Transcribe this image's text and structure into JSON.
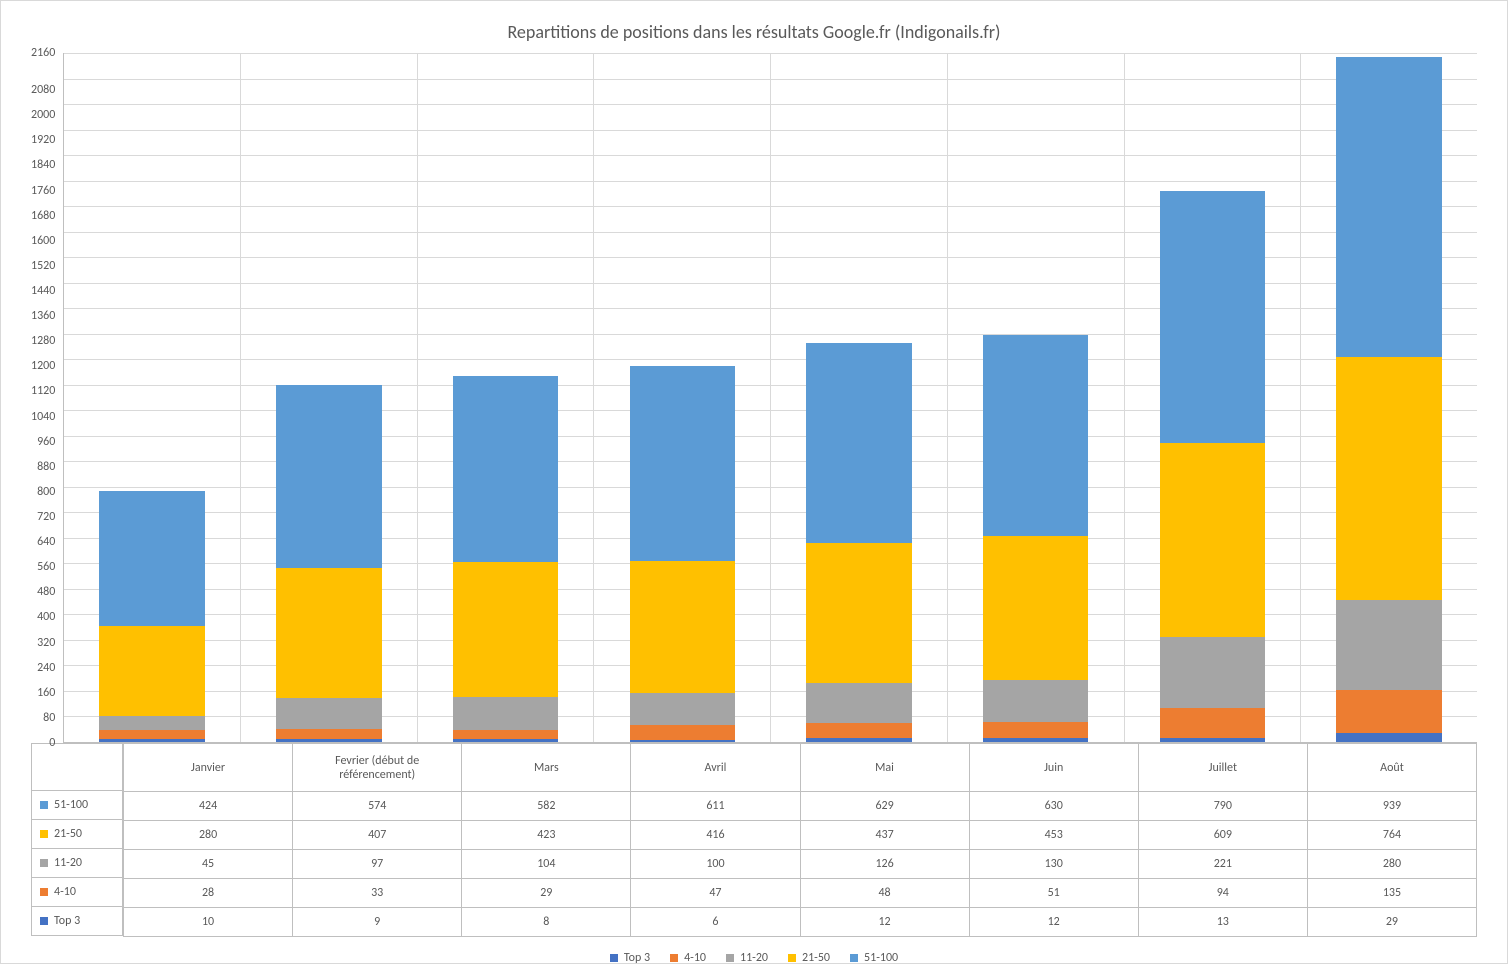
{
  "chart": {
    "type": "stacked-bar",
    "title": "Repartitions de positions dans les résultats Google.fr (Indigonails.fr)",
    "title_fontsize": 18,
    "title_color": "#595959",
    "background_color": "#ffffff",
    "grid_color": "#d9d9d9",
    "axis_color": "#bfbfbf",
    "label_fontsize": 12,
    "label_color": "#595959",
    "ylim": [
      0,
      2160
    ],
    "ytick_step": 80,
    "yticks": [
      2160,
      2080,
      2000,
      1920,
      1840,
      1760,
      1680,
      1600,
      1520,
      1440,
      1360,
      1280,
      1200,
      1120,
      1040,
      960,
      880,
      800,
      720,
      640,
      560,
      480,
      400,
      320,
      240,
      160,
      80,
      0
    ],
    "categories": [
      "Janvier",
      "Fevrier (début de référencement)",
      "Mars",
      "Avril",
      "Mai",
      "Juin",
      "Juillet",
      "Août"
    ],
    "series": [
      {
        "name": "Top 3",
        "color": "#4472c4",
        "values": [
          10,
          9,
          8,
          6,
          12,
          12,
          13,
          29
        ]
      },
      {
        "name": "4-10",
        "color": "#ed7d31",
        "values": [
          28,
          33,
          29,
          47,
          48,
          51,
          94,
          135
        ]
      },
      {
        "name": "11-20",
        "color": "#a5a5a5",
        "values": [
          45,
          97,
          104,
          100,
          126,
          130,
          221,
          280
        ]
      },
      {
        "name": "21-50",
        "color": "#ffc000",
        "values": [
          280,
          407,
          423,
          416,
          437,
          453,
          609,
          764
        ]
      },
      {
        "name": "51-100",
        "color": "#5b9bd5",
        "values": [
          424,
          574,
          582,
          611,
          629,
          630,
          790,
          939
        ]
      }
    ],
    "table_row_order": [
      "51-100",
      "21-50",
      "11-20",
      "4-10",
      "Top 3"
    ],
    "bar_width": 0.6
  }
}
